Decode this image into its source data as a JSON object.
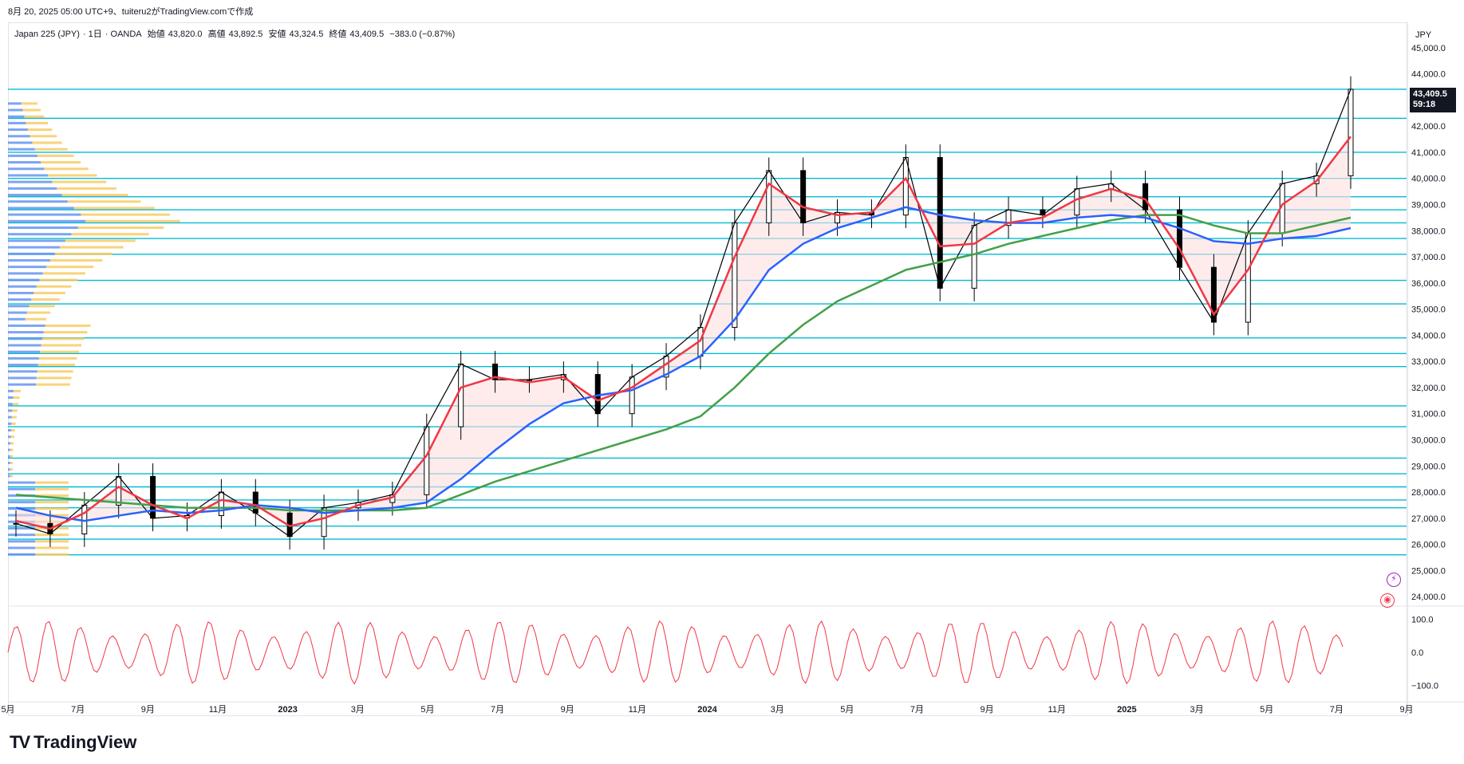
{
  "header": {
    "created_line": "8月 20, 2025 05:00 UTC+9、tuiteru2がTradingView.comで作成"
  },
  "symbol": {
    "name": "Japan 225 (JPY)",
    "interval": "1日",
    "broker": "OANDA",
    "open_label": "始値",
    "open": "43,820.0",
    "high_label": "高値",
    "high": "43,892.5",
    "low_label": "安値",
    "low": "43,324.5",
    "close_label": "終値",
    "close": "43,409.5",
    "change": "−383.0 (−0.87%)"
  },
  "price_axis": {
    "currency": "JPY",
    "current_price": "43,409.5",
    "countdown": "59:18"
  },
  "brand": {
    "name": "TradingView"
  },
  "colors": {
    "candle": "#000000",
    "ma_fast": "#f23645",
    "ma_mid": "#2962ff",
    "ma_slow": "#43a047",
    "levels": "#00bcd4",
    "volume_profile_up": "#5b8def",
    "volume_profile_down": "#f7c85a",
    "oscillator": "#f23645",
    "fill_bull": "#fde0e0",
    "fill_bear": "#d6e4fb"
  },
  "chart_data": {
    "type": "line",
    "title": "Japan 225 (JPY) · 1日 · OANDA",
    "x_ticks": [
      "5月",
      "7月",
      "9月",
      "11月",
      "2023",
      "3月",
      "5月",
      "7月",
      "9月",
      "11月",
      "2024",
      "3月",
      "5月",
      "7月",
      "9月",
      "11月",
      "2025",
      "3月",
      "5月",
      "7月",
      "9月"
    ],
    "y_ticks": [
      "45,000.0",
      "44,000.0",
      "43,000.0",
      "42,000.0",
      "41,000.0",
      "40,000.0",
      "39,000.0",
      "38,000.0",
      "37,000.0",
      "36,000.0",
      "35,000.0",
      "34,000.0",
      "33,000.0",
      "32,000.0",
      "31,000.0",
      "30,000.0",
      "29,000.0",
      "28,000.0",
      "27,000.0",
      "26,000.0",
      "25,000.0",
      "24,000.0"
    ],
    "ylim": [
      23700,
      45300
    ],
    "x": [
      "2022-05",
      "2022-06",
      "2022-07",
      "2022-08",
      "2022-09",
      "2022-10",
      "2022-11",
      "2022-12",
      "2023-01",
      "2023-02",
      "2023-03",
      "2023-04",
      "2023-05",
      "2023-06",
      "2023-07",
      "2023-08",
      "2023-09",
      "2023-10",
      "2023-11",
      "2023-12",
      "2024-01",
      "2024-02",
      "2024-03",
      "2024-04",
      "2024-05",
      "2024-06",
      "2024-07",
      "2024-08",
      "2024-09",
      "2024-10",
      "2024-11",
      "2024-12",
      "2025-01",
      "2025-02",
      "2025-03",
      "2025-04",
      "2025-05",
      "2025-06",
      "2025-07",
      "2025-08"
    ],
    "series": [
      {
        "name": "close",
        "values": [
          26800,
          26400,
          27500,
          28600,
          27000,
          27100,
          28000,
          27200,
          26300,
          27400,
          27600,
          27900,
          30500,
          32900,
          32300,
          32300,
          32500,
          31000,
          32400,
          33200,
          34300,
          38300,
          40300,
          38300,
          38700,
          38600,
          40800,
          35800,
          38200,
          38800,
          38600,
          39600,
          39800,
          38800,
          36600,
          34500,
          37900,
          39800,
          40100,
          43409.5
        ]
      },
      {
        "name": "ma_fast",
        "values": [
          26900,
          26600,
          27200,
          28200,
          27500,
          27000,
          27700,
          27500,
          26700,
          27000,
          27500,
          27800,
          29400,
          32000,
          32400,
          32200,
          32400,
          31500,
          32000,
          32900,
          33800,
          37000,
          39800,
          38900,
          38600,
          38700,
          40000,
          37400,
          37500,
          38300,
          38500,
          39200,
          39600,
          39200,
          37300,
          34800,
          36500,
          39000,
          39900,
          41600
        ]
      },
      {
        "name": "ma_mid",
        "values": [
          27400,
          27100,
          26900,
          27100,
          27300,
          27200,
          27300,
          27500,
          27400,
          27200,
          27300,
          27400,
          27600,
          28500,
          29600,
          30600,
          31400,
          31700,
          31900,
          32500,
          33200,
          34600,
          36500,
          37500,
          38100,
          38500,
          38900,
          38600,
          38400,
          38300,
          38300,
          38500,
          38600,
          38500,
          38100,
          37600,
          37500,
          37700,
          37800,
          38100
        ]
      },
      {
        "name": "ma_slow",
        "values": [
          27900,
          27800,
          27700,
          27600,
          27500,
          27400,
          27400,
          27400,
          27300,
          27300,
          27300,
          27300,
          27400,
          27900,
          28400,
          28800,
          29200,
          29600,
          30000,
          30400,
          30900,
          32000,
          33300,
          34400,
          35300,
          35900,
          36500,
          36800,
          37100,
          37500,
          37800,
          38100,
          38400,
          38600,
          38600,
          38200,
          37900,
          37900,
          38200,
          38500
        ]
      }
    ],
    "oscillator": {
      "ylim": [
        -120,
        120
      ],
      "ticks": [
        "100.0",
        "0.0",
        "−100.0"
      ]
    }
  }
}
